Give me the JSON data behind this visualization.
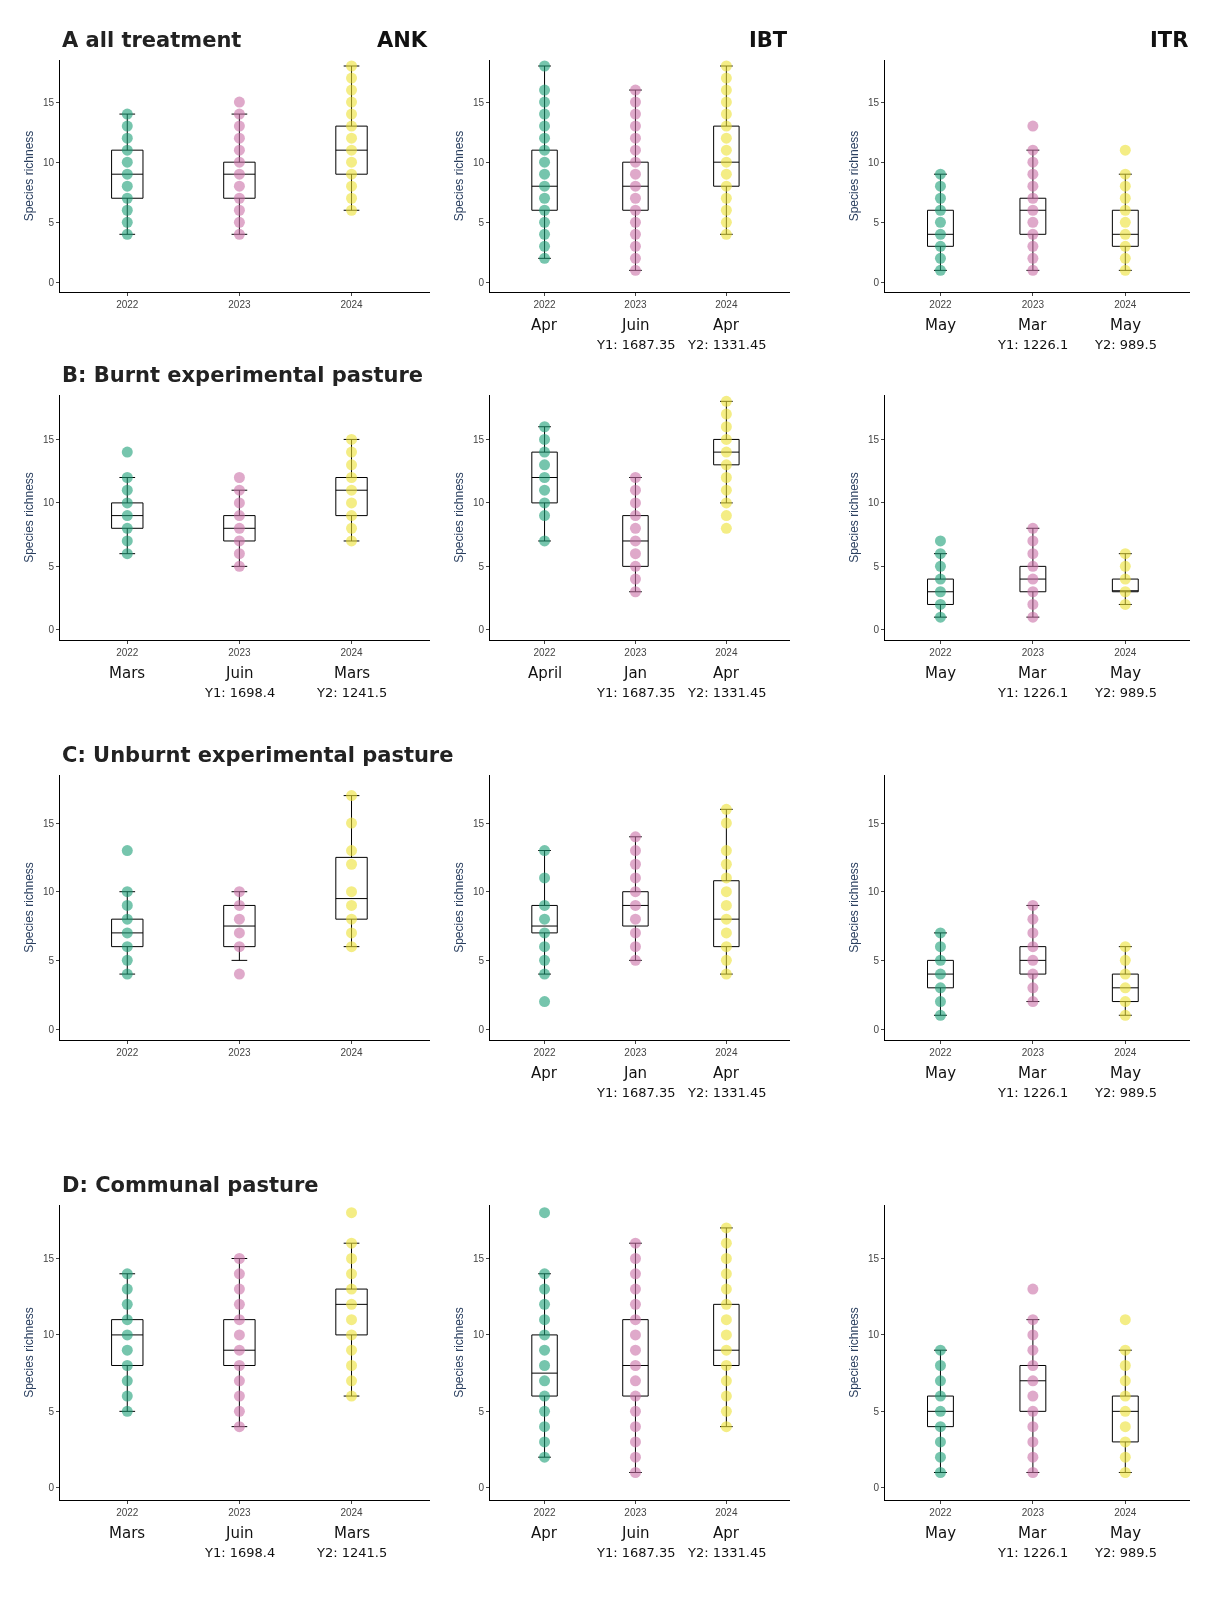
{
  "chart_data": [
    {
      "type": "box",
      "title": "A all treatment",
      "subtitle": "ANK",
      "ylabel": "Species richness",
      "x": [
        2022,
        2023,
        2024
      ],
      "xlim": [
        2021.4,
        2024.7
      ],
      "xticks": [
        2022,
        2023,
        2024
      ],
      "ylim": [
        -0.8,
        18.5
      ],
      "yticks": [
        0,
        5,
        10,
        15
      ],
      "marker": "circle",
      "series": [
        {
          "color": "#000000",
          "boxes": [
            {
              "low": 4,
              "q1": 7,
              "median": 9,
              "q3": 11,
              "high": 14
            },
            {
              "low": 4,
              "q1": 7,
              "median": 9,
              "q3": 10,
              "high": 14
            },
            {
              "low": 6,
              "q1": 9,
              "median": 11,
              "q3": 13,
              "high": 18
            }
          ]
        },
        {
          "type": "scatter",
          "color": "#1b9e77",
          "x": [
            2022,
            2022,
            2022,
            2022,
            2022,
            2022,
            2022,
            2022,
            2022,
            2022,
            2022
          ],
          "values": [
            4,
            5,
            6,
            7,
            8,
            9,
            10,
            11,
            12,
            13,
            14
          ]
        },
        {
          "type": "scatter",
          "color": "#c96fa6",
          "x": [
            2023,
            2023,
            2023,
            2023,
            2023,
            2023,
            2023,
            2023,
            2023,
            2023,
            2023,
            2023
          ],
          "values": [
            4,
            5,
            6,
            7,
            8,
            9,
            10,
            11,
            12,
            13,
            14,
            15
          ]
        },
        {
          "type": "scatter",
          "color": "#ece133",
          "x": [
            2024,
            2024,
            2024,
            2024,
            2024,
            2024,
            2024,
            2024,
            2024,
            2024,
            2024,
            2024,
            2024
          ],
          "values": [
            6,
            7,
            8,
            9,
            10,
            11,
            12,
            13,
            14,
            15,
            16,
            17,
            18
          ]
        }
      ]
    },
    {
      "type": "box",
      "subtitle": "IBT",
      "ylabel": "Species richness",
      "x": [
        2022,
        2023,
        2024
      ],
      "xlim": [
        2021.4,
        2024.7
      ],
      "xticks": [
        2022,
        2023,
        2024
      ],
      "ylim": [
        -0.8,
        18.5
      ],
      "yticks": [
        0,
        5,
        10,
        15
      ],
      "marker": "circle",
      "annotations": [
        "Apr",
        "Juin",
        "Apr",
        "Y1: 1687.35",
        "Y2: 1331.45"
      ],
      "series": [
        {
          "color": "#000000",
          "boxes": [
            {
              "low": 2,
              "q1": 6,
              "median": 8,
              "q3": 11,
              "high": 18
            },
            {
              "low": 1,
              "q1": 6,
              "median": 8,
              "q3": 10,
              "high": 16
            },
            {
              "low": 4,
              "q1": 8,
              "median": 10,
              "q3": 13,
              "high": 18
            }
          ]
        },
        {
          "type": "scatter",
          "color": "#1b9e77",
          "x": [
            2022,
            2022,
            2022,
            2022,
            2022,
            2022,
            2022,
            2022,
            2022,
            2022,
            2022,
            2022,
            2022,
            2022,
            2022,
            2022
          ],
          "values": [
            2,
            3,
            4,
            5,
            6,
            7,
            8,
            9,
            10,
            11,
            12,
            13,
            14,
            15,
            16,
            18
          ]
        },
        {
          "type": "scatter",
          "color": "#c96fa6",
          "x": [
            2023,
            2023,
            2023,
            2023,
            2023,
            2023,
            2023,
            2023,
            2023,
            2023,
            2023,
            2023,
            2023,
            2023,
            2023,
            2023
          ],
          "values": [
            1,
            2,
            3,
            4,
            5,
            6,
            7,
            8,
            9,
            10,
            11,
            12,
            13,
            14,
            15,
            16
          ]
        },
        {
          "type": "scatter",
          "color": "#ece133",
          "x": [
            2024,
            2024,
            2024,
            2024,
            2024,
            2024,
            2024,
            2024,
            2024,
            2024,
            2024,
            2024,
            2024,
            2024,
            2024
          ],
          "values": [
            4,
            5,
            6,
            7,
            8,
            9,
            10,
            11,
            12,
            13,
            14,
            15,
            16,
            17,
            18
          ]
        }
      ]
    },
    {
      "type": "box",
      "subtitle": "ITR",
      "ylabel": "Species richness",
      "x": [
        2022,
        2023,
        2024
      ],
      "xlim": [
        2021.4,
        2024.7
      ],
      "xticks": [
        2022,
        2023,
        2024
      ],
      "ylim": [
        -0.8,
        18.5
      ],
      "yticks": [
        0,
        5,
        10,
        15
      ],
      "marker": "circle",
      "annotations": [
        "May",
        "Mar",
        "May",
        "Y1: 1226.1",
        "Y2: 989.5"
      ],
      "series": [
        {
          "color": "#000000",
          "boxes": [
            {
              "low": 1,
              "q1": 3,
              "median": 4,
              "q3": 6,
              "high": 9
            },
            {
              "low": 1,
              "q1": 4,
              "median": 6,
              "q3": 7,
              "high": 11
            },
            {
              "low": 1,
              "q1": 3,
              "median": 4,
              "q3": 6,
              "high": 9
            }
          ]
        },
        {
          "type": "scatter",
          "color": "#1b9e77",
          "x": [
            2022,
            2022,
            2022,
            2022,
            2022,
            2022,
            2022,
            2022,
            2022
          ],
          "values": [
            1,
            2,
            3,
            4,
            5,
            6,
            7,
            8,
            9
          ]
        },
        {
          "type": "scatter",
          "color": "#c96fa6",
          "x": [
            2023,
            2023,
            2023,
            2023,
            2023,
            2023,
            2023,
            2023,
            2023,
            2023,
            2023,
            2023
          ],
          "values": [
            1,
            2,
            3,
            4,
            5,
            6,
            7,
            8,
            9,
            10,
            11,
            13
          ]
        },
        {
          "type": "scatter",
          "color": "#ece133",
          "x": [
            2024,
            2024,
            2024,
            2024,
            2024,
            2024,
            2024,
            2024,
            2024,
            2024
          ],
          "values": [
            1,
            2,
            3,
            4,
            5,
            6,
            7,
            8,
            9,
            11
          ]
        }
      ]
    },
    {
      "type": "box",
      "title": "B: Burnt experimental pasture",
      "ylabel": "Species richness",
      "x": [
        2022,
        2023,
        2024
      ],
      "xlim": [
        2021.4,
        2024.7
      ],
      "xticks": [
        2022,
        2023,
        2024
      ],
      "ylim": [
        -0.8,
        18.5
      ],
      "yticks": [
        0,
        5,
        10,
        15
      ],
      "marker": "circle",
      "annotations": [
        "Mars",
        "Juin",
        "Mars",
        "Y1: 1698.4",
        "Y2: 1241.5"
      ],
      "series": [
        {
          "color": "#000000",
          "boxes": [
            {
              "low": 6,
              "q1": 8,
              "median": 9,
              "q3": 10,
              "high": 12
            },
            {
              "low": 5,
              "q1": 7,
              "median": 8,
              "q3": 9,
              "high": 11
            },
            {
              "low": 7,
              "q1": 9,
              "median": 11,
              "q3": 12,
              "high": 15
            }
          ]
        },
        {
          "type": "scatter",
          "color": "#1b9e77",
          "x": [
            2022,
            2022,
            2022,
            2022,
            2022,
            2022,
            2022,
            2022
          ],
          "values": [
            6,
            7,
            8,
            9,
            10,
            11,
            12,
            14
          ]
        },
        {
          "type": "scatter",
          "color": "#c96fa6",
          "x": [
            2023,
            2023,
            2023,
            2023,
            2023,
            2023,
            2023,
            2023
          ],
          "values": [
            5,
            6,
            7,
            8,
            9,
            10,
            11,
            12
          ]
        },
        {
          "type": "scatter",
          "color": "#ece133",
          "x": [
            2024,
            2024,
            2024,
            2024,
            2024,
            2024,
            2024,
            2024,
            2024
          ],
          "values": [
            7,
            8,
            9,
            10,
            11,
            12,
            13,
            14,
            15
          ]
        }
      ]
    },
    {
      "type": "box",
      "ylabel": "Species richness",
      "x": [
        2022,
        2023,
        2024
      ],
      "xlim": [
        2021.4,
        2024.7
      ],
      "xticks": [
        2022,
        2023,
        2024
      ],
      "ylim": [
        -0.8,
        18.5
      ],
      "yticks": [
        0,
        5,
        10,
        15
      ],
      "marker": "circle",
      "annotations": [
        "April",
        "Jan",
        "Apr",
        "Y1: 1687.35",
        "Y2: 1331.45"
      ],
      "series": [
        {
          "color": "#000000",
          "boxes": [
            {
              "low": 7,
              "q1": 10,
              "median": 12,
              "q3": 14,
              "high": 16
            },
            {
              "low": 3,
              "q1": 5,
              "median": 7,
              "q3": 9,
              "high": 12
            },
            {
              "low": 10,
              "q1": 13,
              "median": 14,
              "q3": 15,
              "high": 18
            }
          ]
        },
        {
          "type": "scatter",
          "color": "#1b9e77",
          "x": [
            2022,
            2022,
            2022,
            2022,
            2022,
            2022,
            2022,
            2022,
            2022
          ],
          "values": [
            7,
            9,
            10,
            11,
            12,
            13,
            14,
            15,
            16
          ]
        },
        {
          "type": "scatter",
          "color": "#c96fa6",
          "x": [
            2023,
            2023,
            2023,
            2023,
            2023,
            2023,
            2023,
            2023,
            2023,
            2023
          ],
          "values": [
            3,
            4,
            5,
            6,
            7,
            8,
            9,
            10,
            11,
            12
          ]
        },
        {
          "type": "scatter",
          "color": "#ece133",
          "x": [
            2024,
            2024,
            2024,
            2024,
            2024,
            2024,
            2024,
            2024,
            2024,
            2024,
            2024
          ],
          "values": [
            8,
            9,
            10,
            11,
            12,
            13,
            14,
            15,
            16,
            17,
            18
          ]
        }
      ]
    },
    {
      "type": "box",
      "ylabel": "Species richness",
      "x": [
        2022,
        2023,
        2024
      ],
      "xlim": [
        2021.4,
        2024.7
      ],
      "xticks": [
        2022,
        2023,
        2024
      ],
      "ylim": [
        -0.8,
        18.5
      ],
      "yticks": [
        0,
        5,
        10,
        15
      ],
      "marker": "circle",
      "annotations": [
        "May",
        "Mar",
        "May",
        "Y1: 1226.1",
        "Y2: 989.5"
      ],
      "series": [
        {
          "color": "#000000",
          "boxes": [
            {
              "low": 1,
              "q1": 2,
              "median": 3,
              "q3": 4,
              "high": 6
            },
            {
              "low": 1,
              "q1": 3,
              "median": 4,
              "q3": 5,
              "high": 8
            },
            {
              "low": 2,
              "q1": 3,
              "median": 3,
              "q3": 4,
              "high": 6
            }
          ]
        },
        {
          "type": "scatter",
          "color": "#1b9e77",
          "x": [
            2022,
            2022,
            2022,
            2022,
            2022,
            2022,
            2022
          ],
          "values": [
            1,
            2,
            3,
            4,
            5,
            6,
            7
          ]
        },
        {
          "type": "scatter",
          "color": "#c96fa6",
          "x": [
            2023,
            2023,
            2023,
            2023,
            2023,
            2023,
            2023,
            2023
          ],
          "values": [
            1,
            2,
            3,
            4,
            5,
            6,
            7,
            8
          ]
        },
        {
          "type": "scatter",
          "color": "#ece133",
          "x": [
            2024,
            2024,
            2024,
            2024,
            2024
          ],
          "values": [
            2,
            3,
            4,
            5,
            6
          ]
        }
      ]
    },
    {
      "type": "box",
      "title": "C: Unburnt experimental pasture",
      "ylabel": "Species richness",
      "x": [
        2022,
        2023,
        2024
      ],
      "xlim": [
        2021.4,
        2024.7
      ],
      "xticks": [
        2022,
        2023,
        2024
      ],
      "ylim": [
        -0.8,
        18.5
      ],
      "yticks": [
        0,
        5,
        10,
        15
      ],
      "marker": "circle",
      "series": [
        {
          "color": "#000000",
          "boxes": [
            {
              "low": 4,
              "q1": 6,
              "median": 7,
              "q3": 8,
              "high": 10
            },
            {
              "low": 5,
              "q1": 6,
              "median": 7.5,
              "q3": 9,
              "high": 10
            },
            {
              "low": 6,
              "q1": 8,
              "median": 9.5,
              "q3": 12.5,
              "high": 17
            }
          ]
        },
        {
          "type": "scatter",
          "color": "#1b9e77",
          "x": [
            2022,
            2022,
            2022,
            2022,
            2022,
            2022,
            2022,
            2022
          ],
          "values": [
            4,
            5,
            6,
            7,
            8,
            9,
            10,
            13
          ]
        },
        {
          "type": "scatter",
          "color": "#c96fa6",
          "x": [
            2023,
            2023,
            2023,
            2023,
            2023,
            2023
          ],
          "values": [
            4,
            6,
            7,
            8,
            9,
            10
          ]
        },
        {
          "type": "scatter",
          "color": "#ece133",
          "x": [
            2024,
            2024,
            2024,
            2024,
            2024,
            2024,
            2024,
            2024,
            2024
          ],
          "values": [
            6,
            7,
            8,
            9,
            10,
            12,
            13,
            15,
            17
          ]
        }
      ]
    },
    {
      "type": "box",
      "ylabel": "Species richness",
      "x": [
        2022,
        2023,
        2024
      ],
      "xlim": [
        2021.4,
        2024.7
      ],
      "xticks": [
        2022,
        2023,
        2024
      ],
      "ylim": [
        -0.8,
        18.5
      ],
      "yticks": [
        0,
        5,
        10,
        15
      ],
      "marker": "circle",
      "annotations": [
        "Apr",
        "Jan",
        "Apr",
        "Y1: 1687.35",
        "Y2: 1331.45"
      ],
      "series": [
        {
          "color": "#000000",
          "boxes": [
            {
              "low": 4,
              "q1": 7,
              "median": 7.5,
              "q3": 9,
              "high": 13
            },
            {
              "low": 5,
              "q1": 7.5,
              "median": 9,
              "q3": 10,
              "high": 14
            },
            {
              "low": 4,
              "q1": 6,
              "median": 8,
              "q3": 10.8,
              "high": 16
            }
          ]
        },
        {
          "type": "scatter",
          "color": "#1b9e77",
          "x": [
            2022,
            2022,
            2022,
            2022,
            2022,
            2022,
            2022,
            2022,
            2022
          ],
          "values": [
            2,
            4,
            5,
            6,
            7,
            8,
            9,
            11,
            13
          ]
        },
        {
          "type": "scatter",
          "color": "#c96fa6",
          "x": [
            2023,
            2023,
            2023,
            2023,
            2023,
            2023,
            2023,
            2023,
            2023,
            2023
          ],
          "values": [
            5,
            6,
            7,
            8,
            9,
            10,
            11,
            12,
            13,
            14
          ]
        },
        {
          "type": "scatter",
          "color": "#ece133",
          "x": [
            2024,
            2024,
            2024,
            2024,
            2024,
            2024,
            2024,
            2024,
            2024,
            2024,
            2024,
            2024
          ],
          "values": [
            4,
            5,
            6,
            7,
            8,
            9,
            10,
            11,
            12,
            13,
            15,
            16
          ]
        }
      ]
    },
    {
      "type": "box",
      "ylabel": "Species richness",
      "x": [
        2022,
        2023,
        2024
      ],
      "xlim": [
        2021.4,
        2024.7
      ],
      "xticks": [
        2022,
        2023,
        2024
      ],
      "ylim": [
        -0.8,
        18.5
      ],
      "yticks": [
        0,
        5,
        10,
        15
      ],
      "marker": "circle",
      "annotations": [
        "May",
        "Mar",
        "May",
        "Y1: 1226.1",
        "Y2: 989.5"
      ],
      "series": [
        {
          "color": "#000000",
          "boxes": [
            {
              "low": 1,
              "q1": 3,
              "median": 4,
              "q3": 5,
              "high": 7
            },
            {
              "low": 2,
              "q1": 4,
              "median": 5,
              "q3": 6,
              "high": 9
            },
            {
              "low": 1,
              "q1": 2,
              "median": 3,
              "q3": 4,
              "high": 6
            }
          ]
        },
        {
          "type": "scatter",
          "color": "#1b9e77",
          "x": [
            2022,
            2022,
            2022,
            2022,
            2022,
            2022,
            2022
          ],
          "values": [
            1,
            2,
            3,
            4,
            5,
            6,
            7
          ]
        },
        {
          "type": "scatter",
          "color": "#c96fa6",
          "x": [
            2023,
            2023,
            2023,
            2023,
            2023,
            2023,
            2023,
            2023
          ],
          "values": [
            2,
            3,
            4,
            5,
            6,
            7,
            8,
            9
          ]
        },
        {
          "type": "scatter",
          "color": "#ece133",
          "x": [
            2024,
            2024,
            2024,
            2024,
            2024,
            2024
          ],
          "values": [
            1,
            2,
            3,
            4,
            5,
            6
          ]
        }
      ]
    },
    {
      "type": "box",
      "title": "D: Communal pasture",
      "ylabel": "Species richness",
      "x": [
        2022,
        2023,
        2024
      ],
      "xlim": [
        2021.4,
        2024.7
      ],
      "xticks": [
        2022,
        2023,
        2024
      ],
      "ylim": [
        -0.8,
        18.5
      ],
      "yticks": [
        0,
        5,
        10,
        15
      ],
      "marker": "circle",
      "annotations": [
        "Mars",
        "Juin",
        "Mars",
        "Y1: 1698.4",
        "Y2: 1241.5"
      ],
      "series": [
        {
          "color": "#000000",
          "boxes": [
            {
              "low": 5,
              "q1": 8,
              "median": 10,
              "q3": 11,
              "high": 14
            },
            {
              "low": 4,
              "q1": 8,
              "median": 9,
              "q3": 11,
              "high": 15
            },
            {
              "low": 6,
              "q1": 10,
              "median": 12,
              "q3": 13,
              "high": 16
            }
          ]
        },
        {
          "type": "scatter",
          "color": "#1b9e77",
          "x": [
            2022,
            2022,
            2022,
            2022,
            2022,
            2022,
            2022,
            2022,
            2022,
            2022
          ],
          "values": [
            5,
            6,
            7,
            8,
            9,
            10,
            11,
            12,
            13,
            14
          ]
        },
        {
          "type": "scatter",
          "color": "#c96fa6",
          "x": [
            2023,
            2023,
            2023,
            2023,
            2023,
            2023,
            2023,
            2023,
            2023,
            2023,
            2023,
            2023
          ],
          "values": [
            4,
            5,
            6,
            7,
            8,
            9,
            10,
            11,
            12,
            13,
            14,
            15
          ]
        },
        {
          "type": "scatter",
          "color": "#ece133",
          "x": [
            2024,
            2024,
            2024,
            2024,
            2024,
            2024,
            2024,
            2024,
            2024,
            2024,
            2024,
            2024
          ],
          "values": [
            6,
            7,
            8,
            9,
            10,
            11,
            12,
            13,
            14,
            15,
            16,
            18
          ]
        }
      ]
    },
    {
      "type": "box",
      "ylabel": "Species richness",
      "x": [
        2022,
        2023,
        2024
      ],
      "xlim": [
        2021.4,
        2024.7
      ],
      "xticks": [
        2022,
        2023,
        2024
      ],
      "ylim": [
        -0.8,
        18.5
      ],
      "yticks": [
        0,
        5,
        10,
        15
      ],
      "marker": "circle",
      "annotations": [
        "Apr",
        "Juin",
        "Apr",
        "Y1: 1687.35",
        "Y2: 1331.45"
      ],
      "series": [
        {
          "color": "#000000",
          "boxes": [
            {
              "low": 2,
              "q1": 6,
              "median": 7.5,
              "q3": 10,
              "high": 14
            },
            {
              "low": 1,
              "q1": 6,
              "median": 8,
              "q3": 11,
              "high": 16
            },
            {
              "low": 4,
              "q1": 8,
              "median": 9,
              "q3": 12,
              "high": 17
            }
          ]
        },
        {
          "type": "scatter",
          "color": "#1b9e77",
          "x": [
            2022,
            2022,
            2022,
            2022,
            2022,
            2022,
            2022,
            2022,
            2022,
            2022,
            2022,
            2022,
            2022,
            2022
          ],
          "values": [
            2,
            3,
            4,
            5,
            6,
            7,
            8,
            9,
            10,
            11,
            12,
            13,
            14,
            18
          ]
        },
        {
          "type": "scatter",
          "color": "#c96fa6",
          "x": [
            2023,
            2023,
            2023,
            2023,
            2023,
            2023,
            2023,
            2023,
            2023,
            2023,
            2023,
            2023,
            2023,
            2023,
            2023,
            2023
          ],
          "values": [
            1,
            2,
            3,
            4,
            5,
            6,
            7,
            8,
            9,
            10,
            11,
            12,
            13,
            14,
            15,
            16
          ]
        },
        {
          "type": "scatter",
          "color": "#ece133",
          "x": [
            2024,
            2024,
            2024,
            2024,
            2024,
            2024,
            2024,
            2024,
            2024,
            2024,
            2024,
            2024,
            2024,
            2024
          ],
          "values": [
            4,
            5,
            6,
            7,
            8,
            9,
            10,
            11,
            12,
            13,
            14,
            15,
            16,
            17
          ]
        }
      ]
    },
    {
      "type": "box",
      "ylabel": "Species richness",
      "x": [
        2022,
        2023,
        2024
      ],
      "xlim": [
        2021.4,
        2024.7
      ],
      "xticks": [
        2022,
        2023,
        2024
      ],
      "ylim": [
        -0.8,
        18.5
      ],
      "yticks": [
        0,
        5,
        10,
        15
      ],
      "marker": "circle",
      "annotations": [
        "May",
        "Mar",
        "May",
        "Y1: 1226.1",
        "Y2: 989.5"
      ],
      "series": [
        {
          "color": "#000000",
          "boxes": [
            {
              "low": 1,
              "q1": 4,
              "median": 5,
              "q3": 6,
              "high": 9
            },
            {
              "low": 1,
              "q1": 5,
              "median": 7,
              "q3": 8,
              "high": 11
            },
            {
              "low": 1,
              "q1": 3,
              "median": 5,
              "q3": 6,
              "high": 9
            }
          ]
        },
        {
          "type": "scatter",
          "color": "#1b9e77",
          "x": [
            2022,
            2022,
            2022,
            2022,
            2022,
            2022,
            2022,
            2022,
            2022
          ],
          "values": [
            1,
            2,
            3,
            4,
            5,
            6,
            7,
            8,
            9
          ]
        },
        {
          "type": "scatter",
          "color": "#c96fa6",
          "x": [
            2023,
            2023,
            2023,
            2023,
            2023,
            2023,
            2023,
            2023,
            2023,
            2023,
            2023,
            2023
          ],
          "values": [
            1,
            2,
            3,
            4,
            5,
            6,
            7,
            8,
            9,
            10,
            11,
            13
          ]
        },
        {
          "type": "scatter",
          "color": "#ece133",
          "x": [
            2024,
            2024,
            2024,
            2024,
            2024,
            2024,
            2024,
            2024,
            2024,
            2024
          ],
          "values": [
            1,
            2,
            3,
            4,
            5,
            6,
            7,
            8,
            9,
            11
          ]
        }
      ]
    }
  ]
}
